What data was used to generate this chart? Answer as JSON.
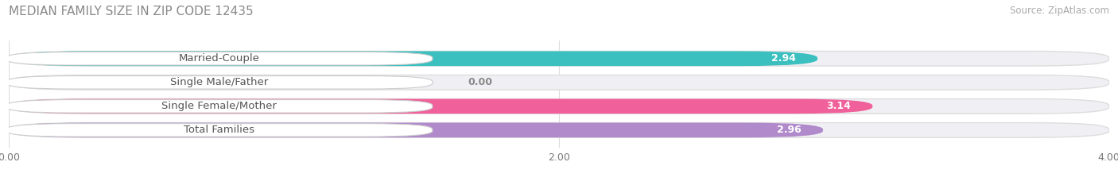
{
  "title": "MEDIAN FAMILY SIZE IN ZIP CODE 12435",
  "source": "Source: ZipAtlas.com",
  "categories": [
    "Married-Couple",
    "Single Male/Father",
    "Single Female/Mother",
    "Total Families"
  ],
  "values": [
    2.94,
    0.0,
    3.14,
    2.96
  ],
  "bar_colors": [
    "#3bbfbf",
    "#a0aed8",
    "#f0609a",
    "#b08aca"
  ],
  "xlim": [
    0,
    4.0
  ],
  "xticks": [
    0.0,
    2.0,
    4.0
  ],
  "xtick_labels": [
    "0.00",
    "2.00",
    "4.00"
  ],
  "background_color": "#ffffff",
  "bar_bg_color": "#f0f0f4",
  "title_fontsize": 11,
  "source_fontsize": 8.5,
  "bar_height": 0.62,
  "bar_label_fontsize": 9,
  "category_fontsize": 9.5,
  "rounding_size": 0.28
}
